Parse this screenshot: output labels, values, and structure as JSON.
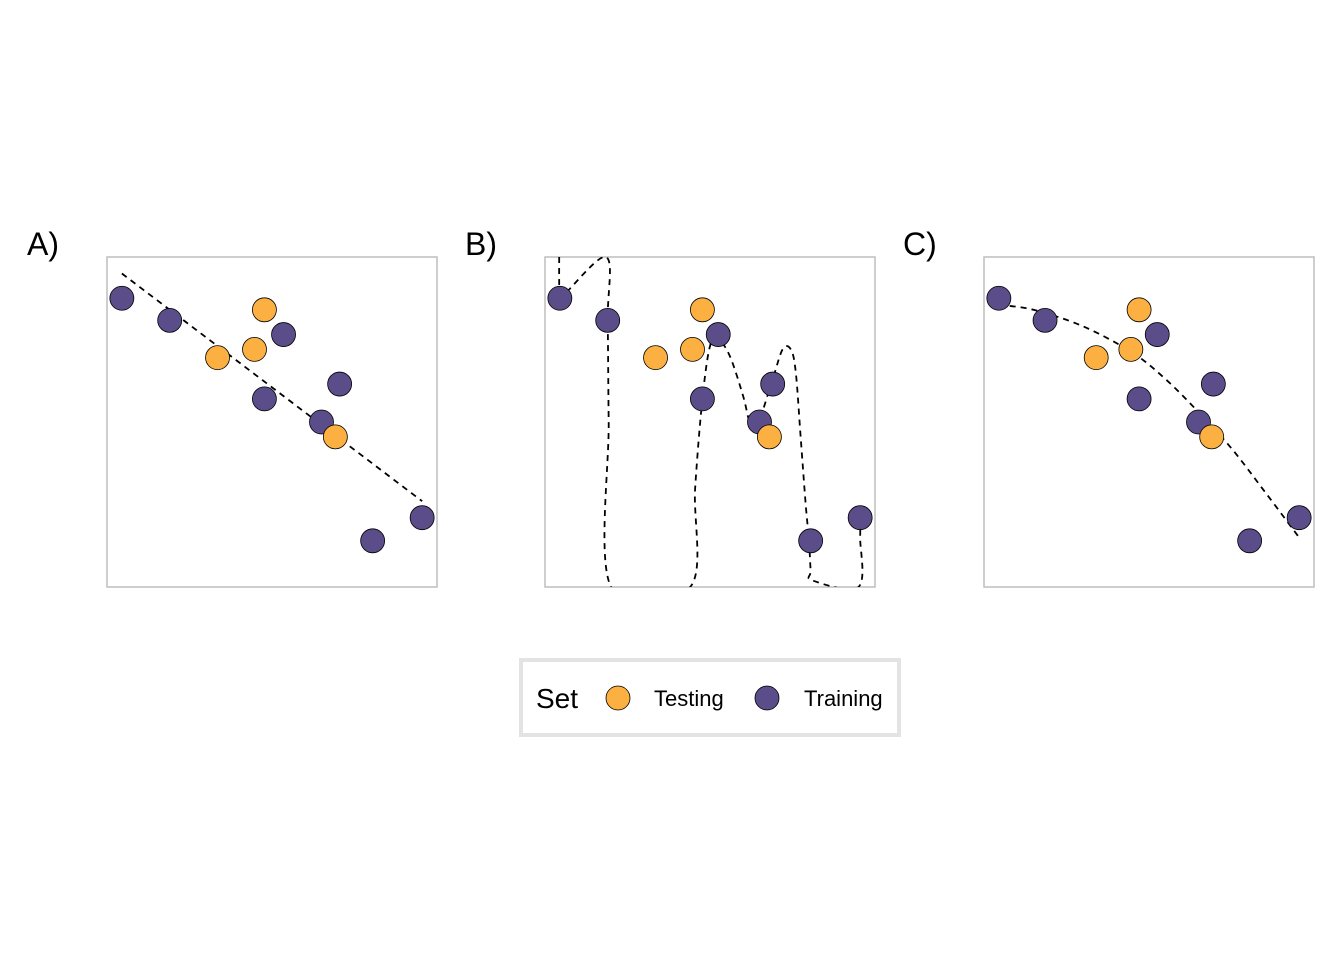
{
  "colors": {
    "testing": "#FDB042",
    "training": "#5B4D8A",
    "frame": "#BEBEBE",
    "legend_border": "#E3E3E3",
    "fit_line": "#000000"
  },
  "legend": {
    "title": "Set",
    "position": "bottom",
    "entries": [
      {
        "label": "Testing",
        "key": "testing"
      },
      {
        "label": "Training",
        "key": "training"
      }
    ]
  },
  "chart_data": [
    {
      "type": "scatter",
      "panel_label": "A)",
      "title": "",
      "xlabel": "",
      "ylabel": "",
      "axes_shown": false,
      "grid": false,
      "xlim": [
        0,
        1
      ],
      "ylim": [
        0,
        1
      ],
      "series": [
        {
          "name": "Testing",
          "key": "testing",
          "x": [
            0.335,
            0.447,
            0.477,
            0.692
          ],
          "y": [
            0.695,
            0.72,
            0.84,
            0.455
          ]
        },
        {
          "name": "Training",
          "key": "training",
          "x": [
            0.045,
            0.19,
            0.477,
            0.535,
            0.65,
            0.705,
            0.805,
            0.955
          ],
          "y": [
            0.875,
            0.808,
            0.57,
            0.765,
            0.5,
            0.615,
            0.14,
            0.21
          ]
        }
      ],
      "fit": {
        "style": "dashed",
        "model": "linear",
        "x": [
          0.045,
          0.955
        ],
        "y": [
          0.95,
          0.26
        ]
      }
    },
    {
      "type": "scatter",
      "panel_label": "B)",
      "title": "",
      "xlabel": "",
      "ylabel": "",
      "axes_shown": false,
      "grid": false,
      "xlim": [
        0,
        1
      ],
      "ylim": [
        0,
        1
      ],
      "series": [
        {
          "name": "Testing",
          "key": "testing",
          "x": [
            0.335,
            0.447,
            0.477,
            0.68
          ],
          "y": [
            0.695,
            0.72,
            0.84,
            0.455
          ]
        },
        {
          "name": "Training",
          "key": "training",
          "x": [
            0.045,
            0.19,
            0.477,
            0.525,
            0.65,
            0.69,
            0.805,
            0.955
          ],
          "y": [
            0.875,
            0.808,
            0.57,
            0.765,
            0.5,
            0.615,
            0.14,
            0.21
          ]
        }
      ],
      "fit": {
        "style": "dashed",
        "model": "overfit",
        "x": [
          0.043,
          0.043,
          0.045,
          0.185,
          0.19,
          0.193,
          0.2,
          0.44,
          0.455,
          0.477,
          0.5,
          0.525,
          0.56,
          0.6,
          0.62,
          0.64,
          0.69,
          0.72,
          0.745,
          0.76,
          0.775,
          0.79,
          0.8,
          0.805,
          0.81,
          0.95,
          0.955,
          0.955
        ],
        "y": [
          1.0,
          0.92,
          0.875,
          1.0,
          0.808,
          0.5,
          0.0,
          0.0,
          0.3,
          0.57,
          0.73,
          0.75,
          0.7,
          0.58,
          0.5,
          0.48,
          0.63,
          0.72,
          0.72,
          0.65,
          0.45,
          0.25,
          0.14,
          0.05,
          0.02,
          0.0,
          0.15,
          0.21
        ]
      }
    },
    {
      "type": "scatter",
      "panel_label": "C)",
      "title": "",
      "xlabel": "",
      "ylabel": "",
      "axes_shown": false,
      "grid": false,
      "xlim": [
        0,
        1
      ],
      "ylim": [
        0,
        1
      ],
      "series": [
        {
          "name": "Testing",
          "key": "testing",
          "x": [
            0.34,
            0.445,
            0.47,
            0.69
          ],
          "y": [
            0.695,
            0.72,
            0.84,
            0.455
          ]
        },
        {
          "name": "Training",
          "key": "training",
          "x": [
            0.045,
            0.185,
            0.47,
            0.525,
            0.65,
            0.695,
            0.805,
            0.955
          ],
          "y": [
            0.875,
            0.808,
            0.57,
            0.765,
            0.5,
            0.615,
            0.14,
            0.21
          ]
        }
      ],
      "fit": {
        "style": "dashed",
        "model": "quadratic",
        "x": [
          0.045,
          0.15,
          0.3,
          0.45,
          0.55,
          0.65,
          0.75,
          0.85,
          0.955
        ],
        "y": [
          0.855,
          0.84,
          0.79,
          0.71,
          0.63,
          0.53,
          0.42,
          0.29,
          0.15
        ]
      }
    }
  ]
}
